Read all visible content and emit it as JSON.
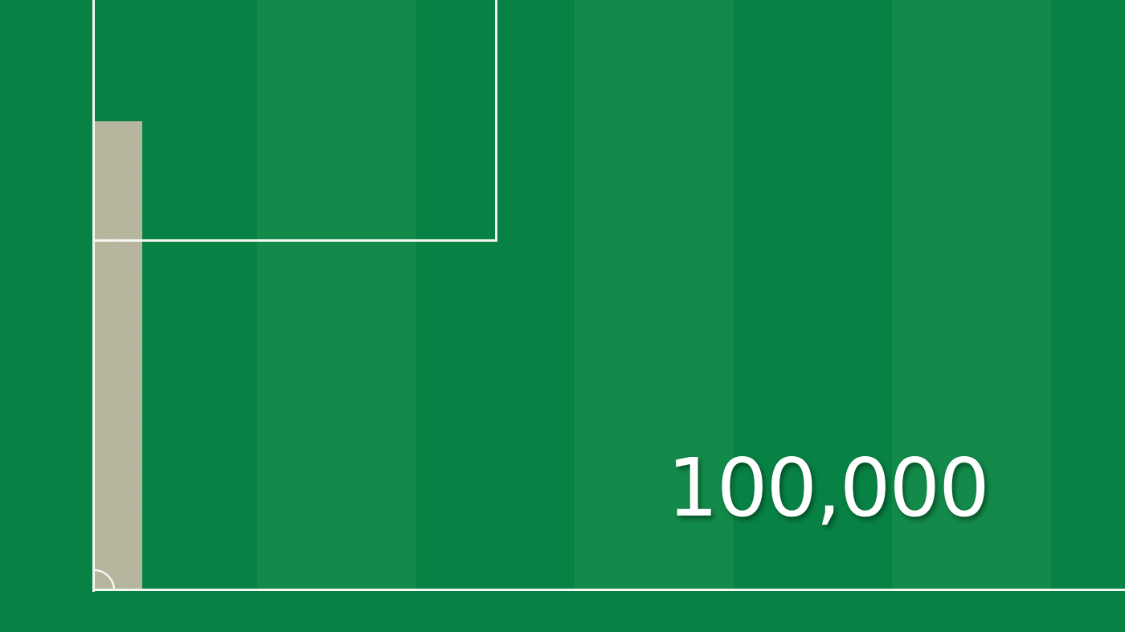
{
  "counter": {
    "value": "100,000"
  },
  "colors": {
    "pitch_dark": "#078244",
    "pitch_light": "#138a4a",
    "line": "#f4f6f2",
    "bar": "#b3b399"
  }
}
